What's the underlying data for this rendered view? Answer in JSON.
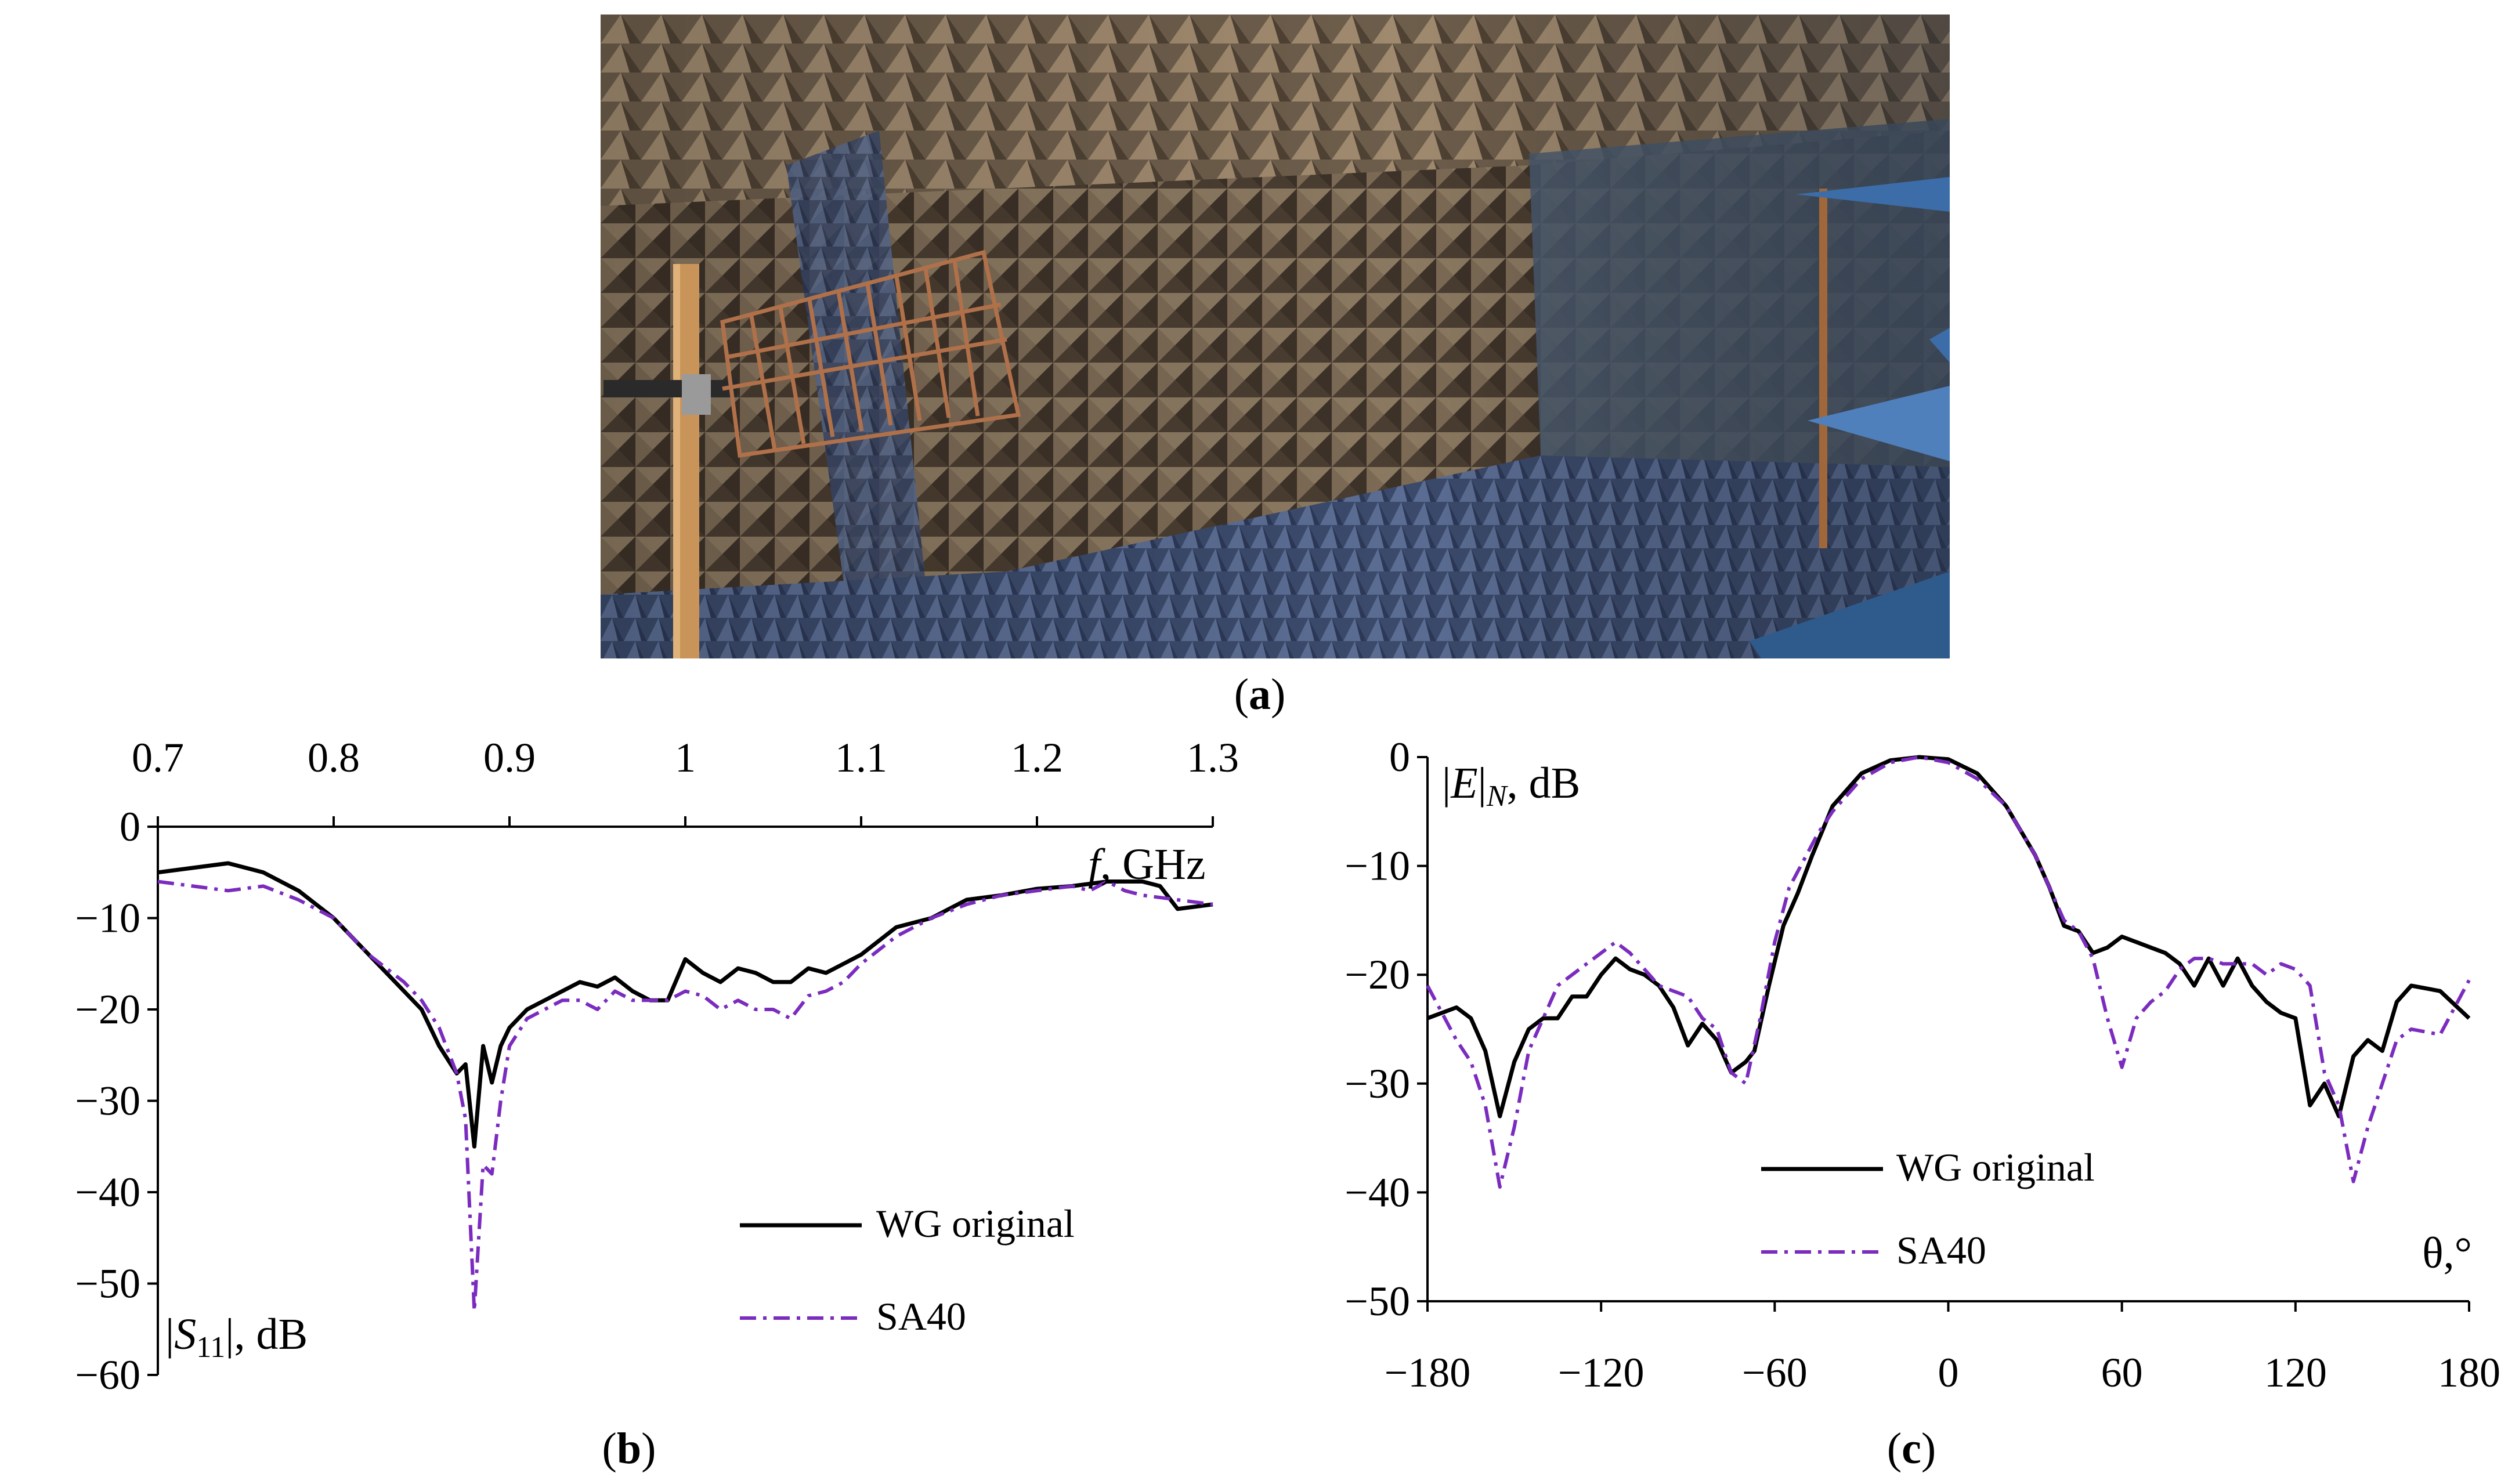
{
  "panels": {
    "a": {
      "caption_open": "(",
      "caption_letter": "a",
      "caption_close": ")"
    },
    "b": {
      "caption_open": "(",
      "caption_letter": "b",
      "caption_close": ")"
    },
    "c": {
      "caption_open": "(",
      "caption_letter": "c",
      "caption_close": ")"
    }
  },
  "photo": {
    "description_tags": [
      "anechoic-chamber",
      "absorber-pyramids",
      "antenna-under-test",
      "wooden-mast",
      "reference-horn"
    ],
    "colors": {
      "absorber_brown": "#6b5a48",
      "absorber_blue": "#4b5a78",
      "floor_blue": "#3d4c6d",
      "wood": "#c8945a",
      "antenna_copper": "#b0714a",
      "horn_blue": "#3c6da8"
    }
  },
  "chart_data": [
    {
      "type": "line",
      "panel": "b",
      "xlabel_italic": "f",
      "xlabel_rest": ", GHz",
      "ylabel_open": "|",
      "ylabel_var": "S",
      "ylabel_sub": "11",
      "ylabel_close": "|, dB",
      "xlim": [
        0.7,
        1.3
      ],
      "ylim": [
        -60,
        0
      ],
      "x_ticks": [
        "0.7",
        "0.8",
        "0.9",
        "1",
        "1.1",
        "1.2",
        "1.3"
      ],
      "x_tick_values": [
        0.7,
        0.8,
        0.9,
        1.0,
        1.1,
        1.2,
        1.3
      ],
      "y_ticks": [
        "0",
        "−10",
        "−20",
        "−30",
        "−40",
        "−50",
        "−60"
      ],
      "y_tick_values": [
        0,
        -10,
        -20,
        -30,
        -40,
        -50,
        -60
      ],
      "x_axis_position": "top",
      "grid": false,
      "legend_position": "bottom-right",
      "series": [
        {
          "name": "WG original",
          "color": "#000000",
          "style": "solid",
          "x": [
            0.7,
            0.72,
            0.74,
            0.76,
            0.78,
            0.8,
            0.82,
            0.84,
            0.85,
            0.86,
            0.87,
            0.875,
            0.88,
            0.885,
            0.89,
            0.895,
            0.9,
            0.91,
            0.92,
            0.93,
            0.94,
            0.95,
            0.96,
            0.97,
            0.98,
            0.99,
            1.0,
            1.01,
            1.02,
            1.03,
            1.04,
            1.05,
            1.06,
            1.07,
            1.08,
            1.09,
            1.1,
            1.12,
            1.14,
            1.16,
            1.18,
            1.2,
            1.22,
            1.24,
            1.26,
            1.27,
            1.28,
            1.3
          ],
          "y": [
            -5,
            -4.5,
            -4,
            -5,
            -7,
            -10,
            -14,
            -18,
            -20,
            -24,
            -27,
            -26,
            -35,
            -24,
            -28,
            -24,
            -22,
            -20,
            -19,
            -18,
            -17,
            -17.5,
            -16.5,
            -18,
            -19,
            -19,
            -14.5,
            -16,
            -17,
            -15.5,
            -16,
            -17,
            -17,
            -15.5,
            -16,
            -15,
            -14,
            -11,
            -10,
            -8,
            -7.5,
            -6.8,
            -6.5,
            -6,
            -6,
            -6.5,
            -9,
            -8.5
          ]
        },
        {
          "name": "SA40",
          "color": "#7b2cbf",
          "style": "dashdot",
          "x": [
            0.7,
            0.72,
            0.74,
            0.76,
            0.78,
            0.8,
            0.82,
            0.84,
            0.85,
            0.86,
            0.87,
            0.875,
            0.88,
            0.885,
            0.89,
            0.895,
            0.9,
            0.91,
            0.92,
            0.93,
            0.94,
            0.95,
            0.96,
            0.97,
            0.98,
            0.99,
            1.0,
            1.01,
            1.02,
            1.03,
            1.04,
            1.05,
            1.06,
            1.07,
            1.08,
            1.09,
            1.1,
            1.12,
            1.14,
            1.16,
            1.18,
            1.2,
            1.22,
            1.23,
            1.24,
            1.25,
            1.26,
            1.28,
            1.3
          ],
          "y": [
            -6,
            -6.5,
            -7,
            -6.5,
            -8,
            -10,
            -14,
            -17,
            -19,
            -22,
            -27,
            -32,
            -53,
            -37,
            -38,
            -30,
            -24,
            -21,
            -20,
            -19,
            -19,
            -20,
            -18,
            -19,
            -19,
            -19,
            -18,
            -18.5,
            -20,
            -19,
            -20,
            -20,
            -21,
            -18.5,
            -18,
            -17,
            -15,
            -12,
            -10,
            -8.5,
            -7.5,
            -7,
            -6.5,
            -7,
            -6,
            -7,
            -7.5,
            -8,
            -8.5
          ]
        }
      ]
    },
    {
      "type": "line",
      "panel": "c",
      "xlabel": "θ,°",
      "ylabel_open": "|",
      "ylabel_var": "E",
      "ylabel_mid": "|",
      "ylabel_sub": "N",
      "ylabel_close": ", dB",
      "xlim": [
        -180,
        180
      ],
      "ylim": [
        -50,
        0
      ],
      "x_ticks": [
        "−180",
        "−120",
        "−60",
        "0",
        "60",
        "120",
        "180"
      ],
      "x_tick_values": [
        -180,
        -120,
        -60,
        0,
        60,
        120,
        180
      ],
      "y_ticks": [
        "0",
        "−10",
        "−20",
        "−30",
        "−40",
        "−50"
      ],
      "y_tick_values": [
        0,
        -10,
        -20,
        -30,
        -40,
        -50
      ],
      "x_axis_position": "bottom",
      "grid": false,
      "legend_position": "bottom-center",
      "series": [
        {
          "name": "WG original",
          "color": "#000000",
          "style": "solid",
          "x": [
            -180,
            -170,
            -165,
            -160,
            -155,
            -150,
            -145,
            -140,
            -135,
            -130,
            -125,
            -120,
            -115,
            -110,
            -105,
            -100,
            -95,
            -90,
            -85,
            -80,
            -75,
            -70,
            -67,
            -62,
            -57,
            -52,
            -47,
            -40,
            -30,
            -20,
            -10,
            0,
            10,
            20,
            30,
            35,
            40,
            45,
            50,
            55,
            60,
            65,
            70,
            75,
            80,
            85,
            90,
            95,
            100,
            105,
            110,
            115,
            120,
            125,
            130,
            135,
            140,
            145,
            150,
            155,
            160,
            170,
            180
          ],
          "y": [
            -24,
            -23,
            -24,
            -27,
            -33,
            -28,
            -25,
            -24,
            -24,
            -22,
            -22,
            -20,
            -18.5,
            -19.5,
            -20,
            -21,
            -23,
            -26.5,
            -24.5,
            -26,
            -29,
            -28,
            -27,
            -21,
            -15.5,
            -12.5,
            -9,
            -4.5,
            -1.5,
            -0.3,
            0,
            -0.2,
            -1.5,
            -4.5,
            -9,
            -12,
            -15.5,
            -16,
            -18,
            -17.5,
            -16.5,
            -17,
            -17.5,
            -18,
            -19,
            -21,
            -18.5,
            -21,
            -18.5,
            -21,
            -22.5,
            -23.5,
            -24,
            -32,
            -30,
            -33,
            -27.5,
            -26,
            -27,
            -22.5,
            -21,
            -21.5,
            -24
          ]
        },
        {
          "name": "SA40",
          "color": "#7b2cbf",
          "style": "dashdot",
          "x": [
            -180,
            -170,
            -165,
            -160,
            -155,
            -150,
            -145,
            -140,
            -135,
            -130,
            -125,
            -120,
            -115,
            -110,
            -105,
            -100,
            -95,
            -90,
            -85,
            -80,
            -75,
            -70,
            -65,
            -60,
            -55,
            -50,
            -45,
            -40,
            -30,
            -20,
            -10,
            0,
            10,
            20,
            30,
            40,
            45,
            50,
            55,
            60,
            65,
            70,
            75,
            80,
            85,
            90,
            95,
            100,
            105,
            110,
            115,
            120,
            125,
            130,
            135,
            140,
            145,
            150,
            155,
            160,
            170,
            180
          ],
          "y": [
            -21,
            -26,
            -28,
            -32,
            -39.5,
            -34,
            -27,
            -24,
            -21,
            -20,
            -19,
            -18,
            -17,
            -18,
            -19.5,
            -21,
            -21.5,
            -22,
            -24,
            -25,
            -29,
            -30,
            -24,
            -17,
            -12,
            -9.5,
            -7,
            -5,
            -2,
            -0.5,
            0,
            -0.5,
            -2,
            -4.5,
            -9,
            -15,
            -16,
            -18.5,
            -24,
            -28.5,
            -24,
            -22.5,
            -21.5,
            -19.5,
            -18.5,
            -18.5,
            -19,
            -19,
            -19,
            -20,
            -19,
            -19.5,
            -21,
            -29,
            -32,
            -39,
            -34,
            -30,
            -26,
            -25,
            -25.5,
            -20.5
          ]
        }
      ]
    }
  ]
}
